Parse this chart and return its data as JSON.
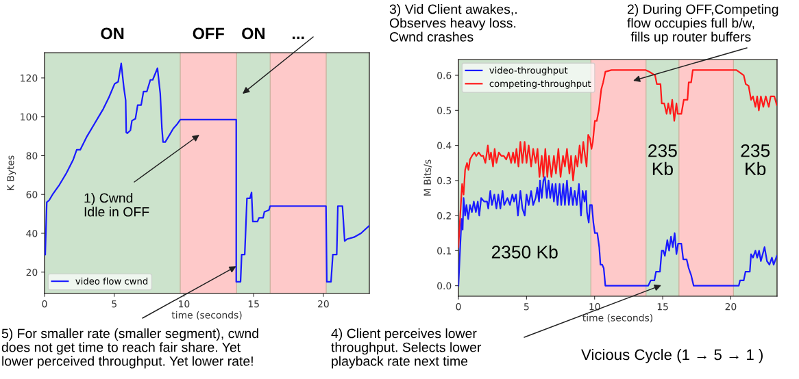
{
  "chart_data": [
    {
      "type": "line",
      "xlabel": "time (seconds)",
      "ylabel": "K Bytes",
      "xlim": [
        0,
        23.3
      ],
      "ylim": [
        9,
        133
      ],
      "xticks": [
        0,
        5,
        10,
        15,
        20
      ],
      "yticks": [
        20,
        40,
        60,
        80,
        100,
        120
      ],
      "legend": "bottom left",
      "series": [
        {
          "name": "video flow cwnd",
          "color": "#1a1aff",
          "x": [
            0.05,
            0.16,
            0.33,
            0.58,
            1.07,
            1.57,
            2.06,
            2.31,
            2.56,
            3.05,
            3.55,
            3.88,
            4.21,
            4.62,
            5.03,
            5.28,
            5.5,
            5.69,
            5.82,
            5.86,
            5.94,
            6.16,
            6.27,
            6.52,
            6.68,
            6.93,
            7.1,
            7.34,
            7.59,
            7.76,
            8.1,
            8.3,
            8.42,
            8.5,
            8.66,
            8.91,
            9.24,
            9.49,
            9.74,
            13.75,
            13.75,
            14.06,
            14.14,
            14.36,
            14.52,
            14.74,
            14.85,
            14.94,
            15.27,
            15.39,
            15.68,
            15.77,
            16.1,
            16.18,
            20.19,
            20.25,
            20.55,
            20.68,
            20.96,
            21.04,
            21.37,
            21.53,
            21.7,
            22.2,
            22.7,
            23.3
          ],
          "values": [
            29,
            56,
            57,
            60,
            65,
            71,
            78,
            83,
            83,
            90,
            96,
            100,
            104,
            110,
            117,
            118,
            127.5,
            115,
            108.5,
            92,
            91.5,
            93,
            98,
            99,
            106,
            106,
            113,
            113,
            119,
            119,
            125,
            112,
            94,
            87,
            87,
            90,
            94,
            96,
            98.5,
            98.5,
            15,
            15,
            29,
            29,
            58,
            58,
            61,
            46,
            46,
            48,
            48,
            51,
            52,
            54,
            54,
            15,
            15,
            29,
            29,
            54,
            54,
            36,
            37,
            38,
            40,
            44
          ]
        }
      ],
      "bands": [
        {
          "axis": "x",
          "from": 0,
          "to": 9.74,
          "label": "ON",
          "color": "#cce3cc"
        },
        {
          "axis": "x",
          "from": 9.74,
          "to": 13.78,
          "label": "OFF",
          "color": "#fec9c9"
        },
        {
          "axis": "x",
          "from": 13.78,
          "to": 16.19,
          "label": "ON",
          "color": "#cce3cc"
        },
        {
          "axis": "x",
          "from": 16.19,
          "to": 20.21,
          "label": "...",
          "color": "#fec9c9"
        },
        {
          "axis": "x",
          "from": 20.21,
          "to": 23.3,
          "color": "#cce3cc"
        }
      ],
      "annotations": [
        "1) Cwnd\nIdle in OFF",
        "3) Vid Client awakes,.\nObserves heavy loss.\nCwnd crashes",
        {
          "text": "5) For smaller rate (smaller segment), cwnd\ndoes not get time to reach fair share. Yet\nlower perceived throughput. Yet lower rate!",
          "x": 13.75,
          "y": 23
        }
      ]
    },
    {
      "type": "line",
      "xlabel": "time (seconds)",
      "ylabel": "M Bits/s",
      "xlim": [
        0,
        23.4
      ],
      "ylim": [
        -0.03,
        0.645
      ],
      "xticks": [
        0,
        5,
        10,
        15,
        20
      ],
      "yticks": [
        {
          "value": 0,
          "label": "0.0"
        },
        {
          "value": 0.1,
          "label": "0.1"
        },
        {
          "value": 0.2,
          "label": "0.2"
        },
        {
          "value": 0.3,
          "label": "0.3"
        },
        {
          "value": 0.4,
          "label": "0.4"
        },
        {
          "value": 0.5,
          "label": "0.5"
        },
        {
          "value": 0.6,
          "label": "0.6"
        }
      ],
      "legend": "top left",
      "series": [
        {
          "name": "video-throughput",
          "color": "#1a1aff",
          "x": [
            0,
            0.13,
            0.23,
            0.31,
            0.38,
            0.49,
            0.59,
            0.72,
            0.85,
            0.99,
            1.13,
            1.28,
            1.42,
            1.53,
            1.67,
            1.89,
            2.1,
            2.19,
            2.34,
            2.46,
            2.64,
            2.79,
            2.93,
            3.08,
            3.24,
            3.36,
            3.6,
            3.78,
            3.96,
            4.08,
            4.23,
            4.37,
            4.55,
            4.7,
            4.87,
            5.0,
            5.16,
            5.34,
            5.49,
            5.67,
            5.79,
            5.92,
            5.99,
            6.12,
            6.24,
            6.35,
            6.49,
            6.62,
            6.74,
            6.89,
            7.01,
            7.14,
            7.28,
            7.43,
            7.55,
            7.7,
            7.82,
            7.97,
            8.11,
            8.26,
            8.4,
            8.54,
            8.69,
            8.85,
            9.0,
            9.12,
            9.26,
            9.37,
            9.44,
            9.57,
            9.66,
            9.8,
            9.91,
            10.02,
            10.2,
            10.34,
            10.43,
            10.56,
            10.67,
            10.79,
            13.94,
            14.12,
            14.39,
            14.51,
            14.8,
            14.93,
            15.05,
            15.16,
            15.34,
            15.47,
            15.61,
            15.74,
            15.88,
            16.01,
            16.13,
            16.37,
            16.51,
            16.76,
            16.91,
            17.09,
            17.27,
            20.59,
            20.68,
            20.95,
            21.08,
            21.4,
            21.49,
            21.63,
            21.81,
            21.94,
            22.08,
            22.21,
            22.48,
            22.66,
            22.84,
            23.02,
            23.15,
            23.38
          ],
          "values": [
            0.0,
            0.11,
            0.19,
            0.16,
            0.25,
            0.2,
            0.23,
            0.19,
            0.23,
            0.21,
            0.24,
            0.21,
            0.24,
            0.2,
            0.25,
            0.24,
            0.24,
            0.22,
            0.27,
            0.23,
            0.26,
            0.22,
            0.26,
            0.22,
            0.27,
            0.23,
            0.25,
            0.23,
            0.26,
            0.24,
            0.26,
            0.2,
            0.27,
            0.22,
            0.2,
            0.26,
            0.23,
            0.27,
            0.23,
            0.25,
            0.28,
            0.24,
            0.3,
            0.25,
            0.3,
            0.31,
            0.25,
            0.3,
            0.25,
            0.29,
            0.24,
            0.29,
            0.23,
            0.29,
            0.23,
            0.29,
            0.23,
            0.3,
            0.23,
            0.28,
            0.23,
            0.27,
            0.23,
            0.29,
            0.2,
            0.27,
            0.24,
            0.27,
            0.21,
            0.18,
            0.23,
            0.23,
            0.18,
            0.15,
            0.15,
            0.11,
            0.06,
            0.06,
            0.05,
            0.0,
            0.0,
            0.015,
            0.015,
            0.04,
            0.04,
            0.1,
            0.1,
            0.085,
            0.13,
            0.1,
            0.14,
            0.11,
            0.15,
            0.09,
            0.12,
            0.12,
            0.075,
            0.075,
            0.05,
            0.03,
            0.0,
            0.0,
            0.015,
            0.015,
            0.04,
            0.04,
            0.09,
            0.08,
            0.1,
            0.08,
            0.1,
            0.07,
            0.11,
            0.07,
            0.06,
            0.08,
            0.06,
            0.085
          ]
        },
        {
          "name": "competing-throughput",
          "color": "#ff1a1a",
          "x": [
            0,
            0.13,
            0.27,
            0.38,
            0.49,
            0.63,
            0.74,
            0.85,
            0.99,
            1.17,
            1.31,
            1.49,
            1.67,
            1.82,
            1.98,
            2.16,
            2.28,
            2.39,
            2.54,
            2.66,
            2.79,
            2.97,
            3.15,
            3.33,
            3.51,
            3.69,
            3.87,
            4.01,
            4.15,
            4.26,
            4.41,
            4.55,
            4.7,
            4.86,
            5.0,
            5.16,
            5.34,
            5.49,
            5.67,
            5.81,
            5.95,
            6.12,
            6.24,
            6.38,
            6.53,
            6.65,
            6.83,
            7.01,
            7.16,
            7.34,
            7.5,
            7.68,
            7.82,
            7.97,
            8.15,
            8.27,
            8.42,
            8.6,
            8.74,
            8.9,
            9.03,
            9.17,
            9.3,
            9.41,
            9.53,
            9.66,
            9.77,
            9.87,
            10.02,
            10.16,
            10.31,
            10.49,
            10.63,
            10.79,
            11.24,
            13.22,
            13.76,
            14.03,
            14.44,
            14.57,
            14.84,
            14.93,
            15.11,
            15.29,
            15.41,
            15.56,
            15.7,
            15.85,
            16.01,
            16.1,
            16.37,
            16.55,
            16.82,
            16.91,
            17.09,
            17.21,
            20.41,
            20.59,
            20.95,
            21.1,
            21.31,
            21.49,
            21.63,
            21.81,
            21.94,
            22.06,
            22.21,
            22.39,
            22.57,
            22.79,
            22.93,
            23.2,
            23.38
          ],
          "values": [
            0.11,
            0.2,
            0.29,
            0.26,
            0.33,
            0.35,
            0.33,
            0.36,
            0.37,
            0.38,
            0.37,
            0.38,
            0.37,
            0.37,
            0.35,
            0.4,
            0.36,
            0.38,
            0.34,
            0.39,
            0.35,
            0.38,
            0.37,
            0.37,
            0.36,
            0.38,
            0.35,
            0.38,
            0.35,
            0.39,
            0.34,
            0.41,
            0.35,
            0.41,
            0.35,
            0.4,
            0.34,
            0.39,
            0.35,
            0.39,
            0.31,
            0.37,
            0.31,
            0.39,
            0.31,
            0.37,
            0.31,
            0.37,
            0.32,
            0.39,
            0.31,
            0.37,
            0.34,
            0.39,
            0.32,
            0.37,
            0.3,
            0.37,
            0.34,
            0.4,
            0.35,
            0.41,
            0.37,
            0.34,
            0.43,
            0.42,
            0.39,
            0.41,
            0.47,
            0.47,
            0.5,
            0.56,
            0.58,
            0.61,
            0.615,
            0.615,
            0.615,
            0.61,
            0.6,
            0.575,
            0.575,
            0.52,
            0.52,
            0.49,
            0.52,
            0.49,
            0.53,
            0.47,
            0.52,
            0.49,
            0.49,
            0.53,
            0.53,
            0.58,
            0.58,
            0.615,
            0.615,
            0.61,
            0.6,
            0.575,
            0.57,
            0.53,
            0.54,
            0.51,
            0.54,
            0.5,
            0.54,
            0.51,
            0.54,
            0.51,
            0.54,
            0.54,
            0.515
          ]
        }
      ],
      "bands": [
        {
          "axis": "x",
          "from": 0,
          "to": 9.73,
          "label": "2350 Kb",
          "color": "#cce3cc"
        },
        {
          "axis": "x",
          "from": 9.73,
          "to": 13.78,
          "color": "#fec9c9"
        },
        {
          "axis": "x",
          "from": 13.78,
          "to": 16.2,
          "label": "235\nKb",
          "color": "#cce3cc"
        },
        {
          "axis": "x",
          "from": 16.2,
          "to": 20.2,
          "color": "#fec9c9"
        },
        {
          "axis": "x",
          "from": 20.2,
          "to": 23.4,
          "label": "235\nKb",
          "color": "#cce3cc"
        }
      ],
      "annotations": [
        "2) During OFF,Competing\nflow occupies full b/w,\n fills up router buffers",
        "4) Client perceives lower\nthroughput. Selects lower\nplayback rate next time",
        "Vicious Cycle (1 → 5 → 1 )"
      ]
    }
  ]
}
